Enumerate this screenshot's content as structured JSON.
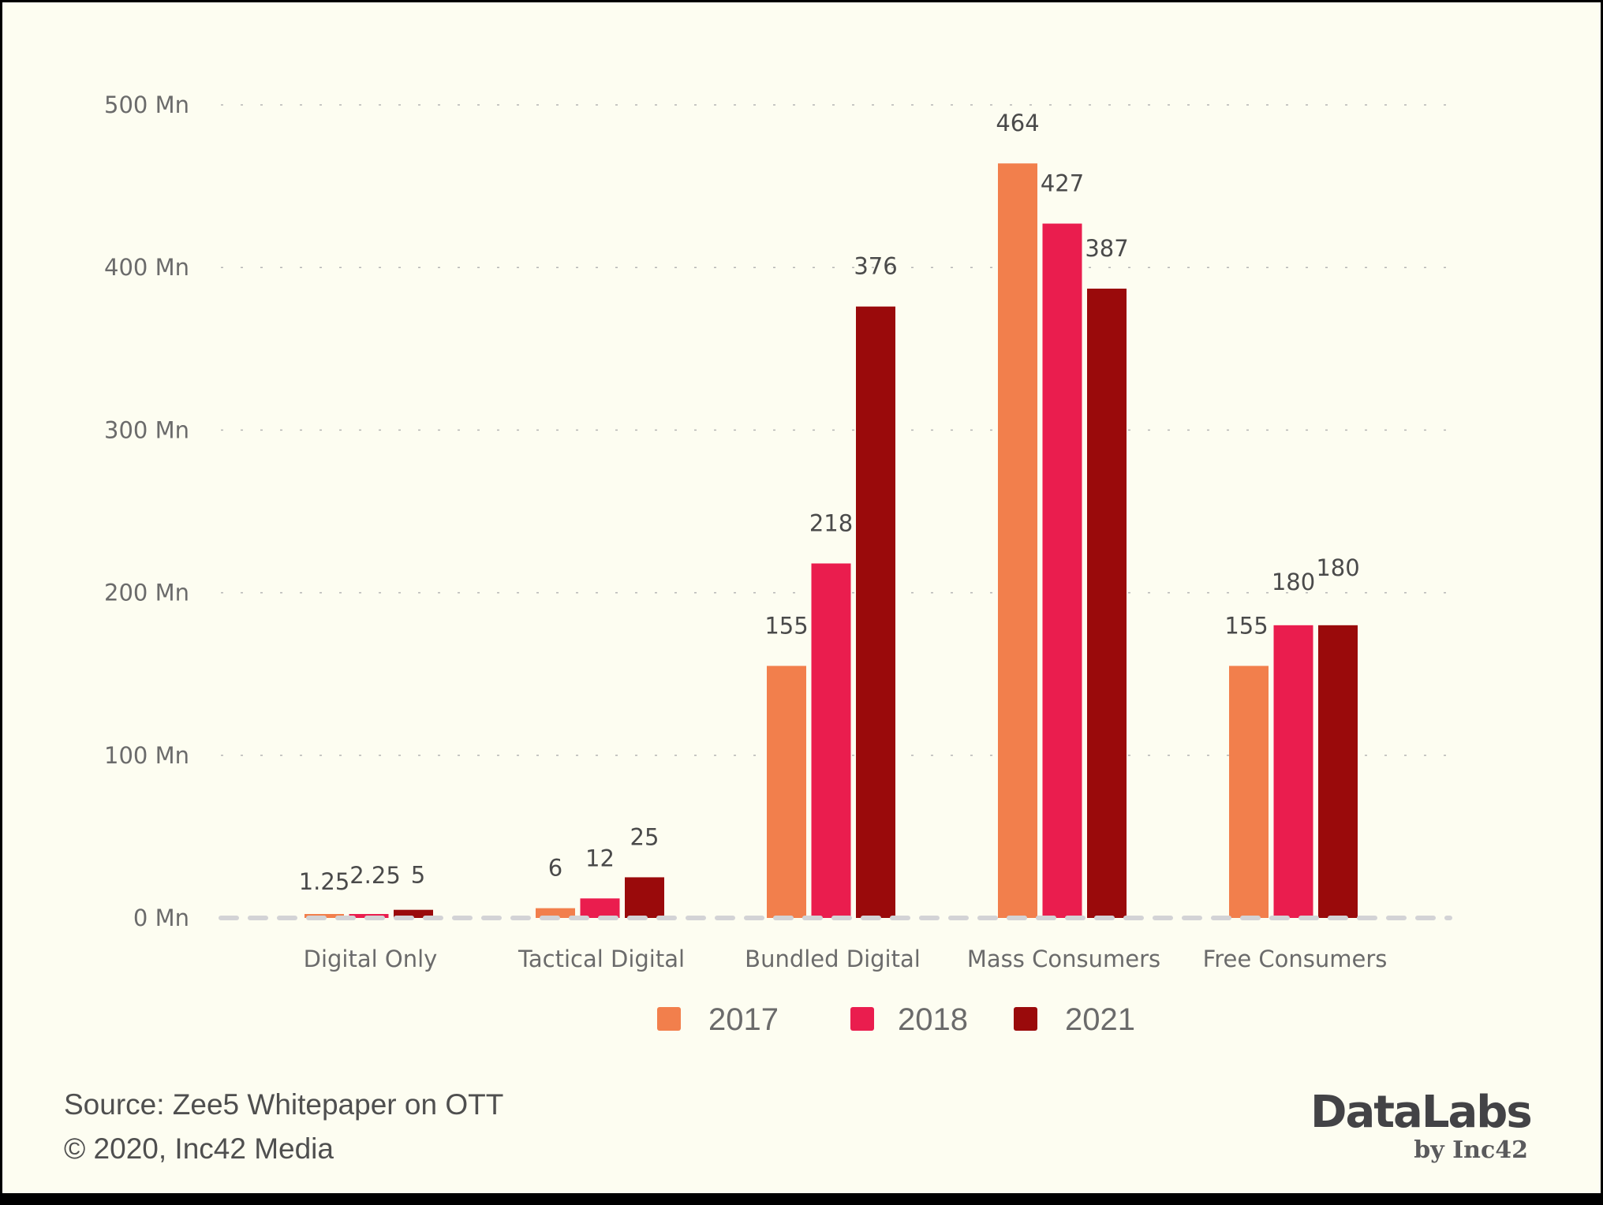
{
  "chart_data": {
    "type": "bar",
    "title": "",
    "xlabel": "",
    "ylabel": "",
    "categories": [
      "Digital Only",
      "Tactical Digital",
      "Bundled Digital",
      "Mass Consumers",
      "Free Consumers"
    ],
    "series": [
      {
        "name": "2017",
        "color": "#f27f4c",
        "values": [
          1.25,
          6,
          155,
          464,
          155
        ],
        "labels": [
          "1.25",
          "6",
          "155",
          "464",
          "155"
        ]
      },
      {
        "name": "2018",
        "color": "#ea1d4e",
        "values": [
          2.25,
          12,
          218,
          427,
          180
        ],
        "labels": [
          "2.25",
          "12",
          "218",
          "427",
          "180"
        ]
      },
      {
        "name": "2021",
        "color": "#9a0a0b",
        "values": [
          5,
          25,
          376,
          387,
          180
        ],
        "labels": [
          "5",
          "25",
          "376",
          "387",
          "180"
        ]
      }
    ],
    "ylim": [
      0,
      500
    ],
    "yticks": [
      0,
      100,
      200,
      300,
      400,
      500
    ],
    "ytick_labels": [
      "0 Mn",
      "100 Mn",
      "200 Mn",
      "300 Mn",
      "400 Mn",
      "500 Mn"
    ],
    "unit": "Mn",
    "grid": true,
    "legend": {
      "position": "bottom-center",
      "entries": [
        "2017",
        "2018",
        "2021"
      ]
    }
  },
  "footer": {
    "source": "Source: Zee5 Whitepaper on OTT",
    "copyright": "© 2020, Inc42 Media"
  },
  "branding": {
    "name": "DataLabs",
    "by": "by Inc42"
  },
  "colors": {
    "background": "#fdfdf1",
    "gridline": "#b5b5b5",
    "baseline": "#d3d3d6",
    "text": "#6b6b6b"
  }
}
